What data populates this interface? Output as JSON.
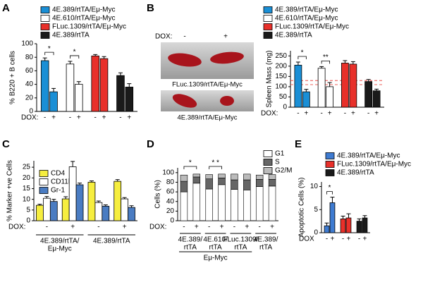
{
  "panel_labels": [
    "A",
    "B",
    "C",
    "D",
    "E"
  ],
  "photo_panel": {
    "dox_label": "DOX:",
    "minus": "-",
    "plus": "+",
    "captions": [
      "FLuc.1309/rtTA/Eμ-Myc",
      "4E.389/rtTA/Eμ-Myc"
    ]
  },
  "chart_data": [
    {
      "type": "bar",
      "grouping": "series",
      "ylabel": "% B220 + B cells",
      "x_row_label": "DOX:",
      "categories": [
        "-",
        "+"
      ],
      "ylim": [
        0,
        100
      ],
      "yticks": [
        0,
        20,
        40,
        60,
        80,
        100
      ],
      "legend": "top",
      "series": [
        {
          "name": "4E.389/rtTA/Eμ-Myc",
          "color": "#1a8fd6",
          "values": [
            75,
            29
          ],
          "errors": [
            4,
            5
          ],
          "significance": "*"
        },
        {
          "name": "4E.610/rtTA/Eμ-Myc",
          "color": "#ffffff",
          "values": [
            70,
            40
          ],
          "errors": [
            4,
            4
          ],
          "significance": "*"
        },
        {
          "name": "FLuc.1309/rtTA/Eμ-Myc",
          "color": "#e8302a",
          "values": [
            82,
            78
          ],
          "errors": [
            2,
            3
          ]
        },
        {
          "name": "4E.389/rtTA",
          "color": "#1a1a1a",
          "values": [
            53,
            36
          ],
          "errors": [
            4,
            5
          ]
        }
      ]
    },
    {
      "type": "bar",
      "grouping": "series",
      "ylabel": "Spleen Mass (mg)",
      "x_row_label": "DOX:",
      "categories": [
        "-",
        "+"
      ],
      "ylim": [
        0,
        275
      ],
      "yticks": [
        0,
        50,
        100,
        150,
        200,
        250
      ],
      "legend": "top",
      "reference_lines": [
        110,
        130
      ],
      "reference_color": "#e8302a",
      "series": [
        {
          "name": "4E.389/rtTA/Eμ-Myc",
          "color": "#1a8fd6",
          "values": [
            205,
            75
          ],
          "errors": [
            15,
            12
          ],
          "significance": "*"
        },
        {
          "name": "4E.610/rtTA/Eμ-Myc",
          "color": "#ffffff",
          "values": [
            190,
            100
          ],
          "errors": [
            8,
            20
          ],
          "significance": "**"
        },
        {
          "name": "FLuc.1309/rtTA/Eμ-Myc",
          "color": "#e8302a",
          "values": [
            215,
            210
          ],
          "errors": [
            12,
            12
          ]
        },
        {
          "name": "4E.389/rtTA",
          "color": "#1a1a1a",
          "values": [
            125,
            80
          ],
          "errors": [
            10,
            8
          ]
        }
      ]
    },
    {
      "type": "bar",
      "grouping": "categories",
      "ylabel": "% Marker +ve Cells",
      "x_row_label": "DOX:",
      "categories": [
        "-",
        "+",
        "-",
        "+"
      ],
      "groups": [
        {
          "label": [
            "4E.389/rtTA/",
            "Eμ-Myc"
          ]
        },
        {
          "label": [
            "4E.389/rtTA"
          ]
        }
      ],
      "ylim": [
        0,
        28
      ],
      "yticks": [
        0,
        5,
        10,
        15,
        20,
        25
      ],
      "legend": "upper left",
      "series": [
        {
          "name": "CD4",
          "color": "#f6ee3f",
          "values": [
            7.2,
            10.2,
            18,
            18.4
          ],
          "errors": [
            0.5,
            1,
            0.6,
            0.8
          ]
        },
        {
          "name": "CD11b",
          "color": "#ffffff",
          "values": [
            10.5,
            25.2,
            8.5,
            10.2
          ],
          "errors": [
            0.8,
            2.5,
            0.7,
            0.6
          ]
        },
        {
          "name": "Gr-1",
          "color": "#4a7cc2",
          "values": [
            9,
            16.8,
            6.8,
            6.2
          ],
          "errors": [
            1,
            0.8,
            0.6,
            0.8
          ]
        }
      ]
    },
    {
      "type": "stacked_bar",
      "ylabel": "Cells (%)",
      "x_row_label": "DOX:",
      "categories": [
        "-",
        "+",
        "-",
        "+",
        "-",
        "+",
        "-",
        "+"
      ],
      "groups": [
        {
          "label": [
            "4E.389/",
            "rtTA"
          ],
          "significance": "*"
        },
        {
          "label": [
            "4E.610/",
            "rtTA"
          ],
          "significance": "* *"
        },
        {
          "label": [
            "FLuc.1309/",
            "rtTA"
          ]
        },
        {
          "label": [
            "4E.389/",
            "rtTA"
          ]
        }
      ],
      "group_note": "Eμ-Myc",
      "ylim": [
        0,
        110
      ],
      "yticks": [
        0,
        20,
        40,
        60,
        80,
        100
      ],
      "legend": "upper right",
      "series": [
        {
          "name": "G1",
          "color": "#ffffff",
          "values": [
            60,
            78,
            66,
            75,
            65,
            64,
            71,
            72
          ]
        },
        {
          "name": "S",
          "color": "#666666",
          "values": [
            22,
            13,
            21,
            14,
            20,
            21,
            15,
            14
          ]
        },
        {
          "name": "G2/M",
          "color": "#bbbbbb",
          "values": [
            13,
            6,
            9,
            8,
            12,
            12,
            9,
            10
          ]
        }
      ]
    },
    {
      "type": "bar",
      "grouping": "series",
      "ylabel": "Apoptotic Cells (%)",
      "x_row_label": "DOX",
      "categories": [
        "-",
        "+"
      ],
      "ylim": [
        0,
        11
      ],
      "yticks": [
        0,
        5,
        10
      ],
      "legend": "top",
      "series": [
        {
          "name": "4E.389/rtTA/Eμ-Myc",
          "color": "#3e7bd1",
          "values": [
            1.5,
            6.5
          ],
          "errors": [
            0.6,
            1.2
          ],
          "significance": "*"
        },
        {
          "name": "FLuc.1309/rtTA/Eμ-Myc",
          "color": "#e8302a",
          "values": [
            3,
            3.2
          ],
          "errors": [
            0.6,
            0.9
          ]
        },
        {
          "name": "4E.389/rtTA",
          "color": "#1a1a1a",
          "values": [
            2.5,
            3.2
          ],
          "errors": [
            0.5,
            0.5
          ]
        }
      ]
    }
  ]
}
